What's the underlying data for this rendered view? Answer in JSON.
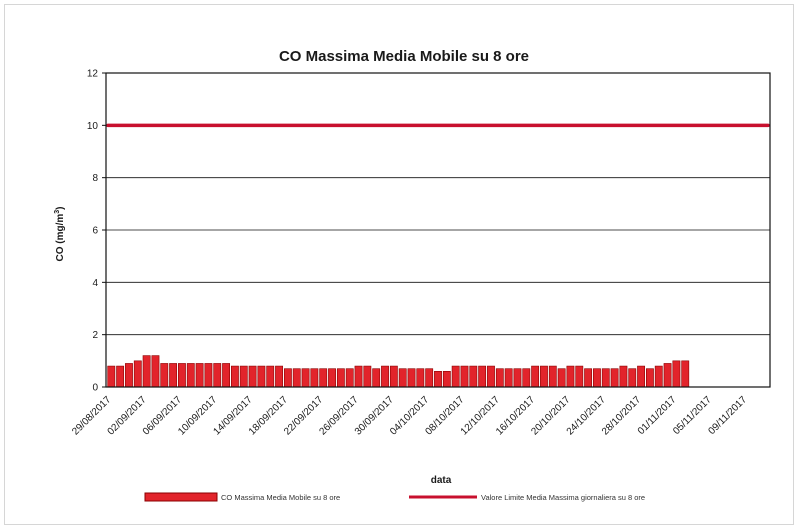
{
  "chart_data": {
    "type": "bar",
    "title": "CO Massima Media Mobile  su 8 ore",
    "xlabel": "data",
    "ylabel_main": "CO (mg/m",
    "ylabel_sup": "3",
    "ylabel_close": ")",
    "ylim": [
      0,
      12
    ],
    "yticks": [
      0,
      2,
      4,
      6,
      8,
      10,
      12
    ],
    "ytick_labels": [
      "0",
      "2",
      "4",
      "6",
      "8",
      "10",
      "12"
    ],
    "x_start": "29/08/2017",
    "x_end": "11/11/2017",
    "xtick_labels": [
      "29/08/2017",
      "02/09/2017",
      "06/09/2017",
      "10/09/2017",
      "14/09/2017",
      "18/09/2017",
      "22/09/2017",
      "26/09/2017",
      "30/09/2017",
      "04/10/2017",
      "08/10/2017",
      "12/10/2017",
      "16/10/2017",
      "20/10/2017",
      "24/10/2017",
      "28/10/2017",
      "01/11/2017",
      "05/11/2017",
      "09/11/2017"
    ],
    "categories": [
      "29/08/2017",
      "30/08/2017",
      "31/08/2017",
      "01/09/2017",
      "02/09/2017",
      "03/09/2017",
      "04/09/2017",
      "05/09/2017",
      "06/09/2017",
      "07/09/2017",
      "08/09/2017",
      "09/09/2017",
      "10/09/2017",
      "11/09/2017",
      "12/09/2017",
      "13/09/2017",
      "14/09/2017",
      "15/09/2017",
      "16/09/2017",
      "17/09/2017",
      "18/09/2017",
      "19/09/2017",
      "20/09/2017",
      "21/09/2017",
      "22/09/2017",
      "23/09/2017",
      "24/09/2017",
      "25/09/2017",
      "26/09/2017",
      "27/09/2017",
      "28/09/2017",
      "29/09/2017",
      "30/09/2017",
      "01/10/2017",
      "02/10/2017",
      "03/10/2017",
      "04/10/2017",
      "05/10/2017",
      "06/10/2017",
      "07/10/2017",
      "08/10/2017",
      "09/10/2017",
      "10/10/2017",
      "11/10/2017",
      "12/10/2017",
      "13/10/2017",
      "14/10/2017",
      "15/10/2017",
      "16/10/2017",
      "17/10/2017",
      "18/10/2017",
      "19/10/2017",
      "20/10/2017",
      "21/10/2017",
      "22/10/2017",
      "23/10/2017",
      "24/10/2017",
      "25/10/2017",
      "26/10/2017",
      "27/10/2017",
      "28/10/2017",
      "29/10/2017",
      "30/10/2017",
      "31/10/2017",
      "01/11/2017",
      "02/11/2017",
      "03/11/2017",
      "04/11/2017",
      "05/11/2017",
      "06/11/2017",
      "07/11/2017",
      "08/11/2017",
      "09/11/2017",
      "10/11/2017",
      "11/11/2017"
    ],
    "series": [
      {
        "name": "CO Massima Media Mobile su 8 ore",
        "kind": "bar",
        "color": "#e2242b",
        "values": [
          0.8,
          0.8,
          0.9,
          1.0,
          1.2,
          1.2,
          0.9,
          0.9,
          0.9,
          0.9,
          0.9,
          0.9,
          0.9,
          0.9,
          0.8,
          0.8,
          0.8,
          0.8,
          0.8,
          0.8,
          0.7,
          0.7,
          0.7,
          0.7,
          0.7,
          0.7,
          0.7,
          0.7,
          0.8,
          0.8,
          0.7,
          0.8,
          0.8,
          0.7,
          0.7,
          0.7,
          0.7,
          0.6,
          0.6,
          0.8,
          0.8,
          0.8,
          0.8,
          0.8,
          0.7,
          0.7,
          0.7,
          0.7,
          0.8,
          0.8,
          0.8,
          0.7,
          0.8,
          0.8,
          0.7,
          0.7,
          0.7,
          0.7,
          0.8,
          0.7,
          0.8,
          0.7,
          0.8,
          0.9,
          1.0,
          1.0,
          null,
          null,
          null,
          null,
          null,
          null,
          null,
          null,
          null
        ]
      },
      {
        "name": "Valore Limite Media Massima giornaliera su 8 ore",
        "kind": "line",
        "color": "#c8102e",
        "value": 10
      }
    ],
    "legend_position": "bottom",
    "grid": "horizontal"
  }
}
